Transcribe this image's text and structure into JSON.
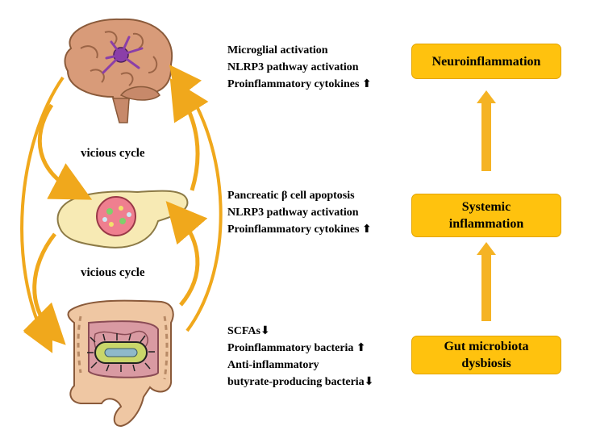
{
  "labels": {
    "vicious_cycle_top": "vicious cycle",
    "vicious_cycle_bottom": "vicious cycle"
  },
  "brain_effects": [
    "Microglial activation",
    "NLRP3 pathway activation",
    "Proinflammatory cytokines"
  ],
  "pancreas_effects": [
    "Pancreatic β cell apoptosis",
    "NLRP3 pathway activation",
    "Proinflammatory cytokines"
  ],
  "gut_effects": [
    "SCFAs",
    "Proinflammatory bacteria",
    "Anti-inflammatory",
    "butyrate-producing bacteria"
  ],
  "indicators": {
    "up": "⬆",
    "down": "⬇"
  },
  "flow_boxes": {
    "top": "Neuroinflammation",
    "middle": [
      "Systemic",
      "inflammation"
    ],
    "bottom": [
      "Gut microbiota",
      "dysbiosis"
    ]
  },
  "colors": {
    "box_fill": "#ffc20e",
    "arrow": "#f5b324",
    "cycle_arrow": "#f0a81c"
  },
  "icons": [
    "brain-icon",
    "pancreas-icon",
    "intestine-icon",
    "bacterium-icon"
  ]
}
